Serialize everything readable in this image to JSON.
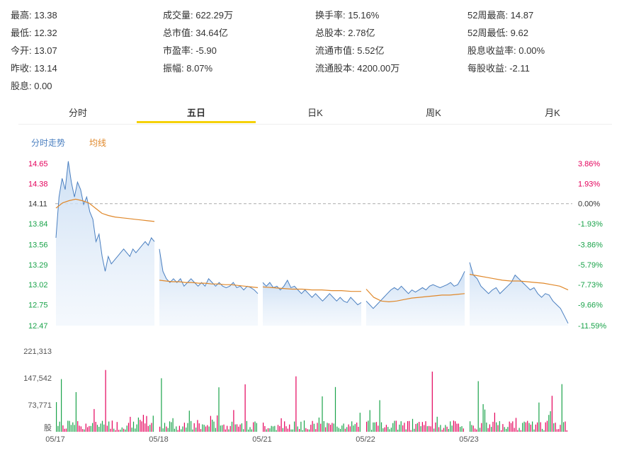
{
  "stats": [
    [
      {
        "label": "最高",
        "value": "13.38"
      },
      {
        "label": "最低",
        "value": "12.32"
      },
      {
        "label": "今开",
        "value": "13.07"
      },
      {
        "label": "昨收",
        "value": "13.14"
      },
      {
        "label": "股息",
        "value": "0.00"
      }
    ],
    [
      {
        "label": "成交量",
        "value": "622.29万"
      },
      {
        "label": "总市值",
        "value": "34.64亿"
      },
      {
        "label": "市盈率",
        "value": "-5.90"
      },
      {
        "label": "振幅",
        "value": "8.07%"
      }
    ],
    [
      {
        "label": "换手率",
        "value": "15.16%"
      },
      {
        "label": "总股本",
        "value": "2.78亿"
      },
      {
        "label": "流通市值",
        "value": "5.52亿"
      },
      {
        "label": "流通股本",
        "value": "4200.00万"
      }
    ],
    [
      {
        "label": "52周最高",
        "value": "14.87"
      },
      {
        "label": "52周最低",
        "value": "9.62"
      },
      {
        "label": "股息收益率",
        "value": "0.00%"
      },
      {
        "label": "每股收益",
        "value": "-2.11"
      }
    ]
  ],
  "tabs": [
    "分时",
    "五日",
    "日K",
    "周K",
    "月K"
  ],
  "active_tab": 1,
  "colors": {
    "price_line": "#4a7fc0",
    "avg_line": "#e0882a",
    "up": "#e4005b",
    "down": "#1aa34a",
    "accent": "#f5d10a",
    "legend_blue": "#4a7fc0",
    "legend_orange": "#e0882a"
  },
  "chart_data": {
    "type": "line",
    "legend": [
      "分时走势",
      "均线"
    ],
    "price_ticks": [
      "14.65",
      "14.38",
      "14.11",
      "13.84",
      "13.56",
      "13.29",
      "13.02",
      "12.75",
      "12.47"
    ],
    "pct_ticks": [
      "3.86%",
      "1.93%",
      "0.00%",
      "-1.93%",
      "-3.86%",
      "-5.79%",
      "-7.73%",
      "-9.66%",
      "-11.59%"
    ],
    "ylim": [
      12.47,
      14.65
    ],
    "prev_close": 14.11,
    "volume_ticks": [
      "221,313",
      "147,542",
      "73,771"
    ],
    "volume_unit": "股",
    "volume_max": 221313,
    "days": [
      "05/17",
      "05/18",
      "05/21",
      "05/22",
      "05/23"
    ],
    "price_series": [
      [
        13.65,
        14.2,
        14.45,
        14.3,
        14.68,
        14.4,
        14.2,
        14.4,
        14.3,
        14.1,
        14.2,
        14.0,
        13.9,
        13.6,
        13.7,
        13.4,
        13.2,
        13.4,
        13.3,
        13.35,
        13.4,
        13.45,
        13.5,
        13.45,
        13.4,
        13.5,
        13.45,
        13.5,
        13.55,
        13.6,
        13.55,
        13.65,
        13.6
      ],
      [
        13.5,
        13.2,
        13.1,
        13.05,
        13.1,
        13.05,
        13.1,
        13.0,
        13.05,
        13.1,
        13.05,
        13.0,
        13.05,
        13.0,
        13.1,
        13.05,
        13.0,
        13.05,
        13.0,
        12.98,
        13.0,
        13.05,
        12.98,
        13.0,
        12.95,
        13.0,
        12.98,
        12.95,
        12.9
      ],
      [
        13.05,
        13.0,
        13.05,
        12.98,
        13.0,
        12.95,
        13.0,
        13.08,
        12.98,
        13.0,
        12.95,
        12.9,
        12.95,
        12.9,
        12.85,
        12.9,
        12.85,
        12.8,
        12.85,
        12.9,
        12.85,
        12.8,
        12.85,
        12.8,
        12.78,
        12.85,
        12.8,
        12.75,
        12.78
      ],
      [
        12.8,
        12.75,
        12.7,
        12.75,
        12.8,
        12.85,
        12.9,
        12.95,
        12.98,
        12.95,
        13.0,
        12.95,
        12.9,
        12.95,
        12.92,
        12.95,
        12.98,
        12.95,
        13.0,
        13.02,
        13.0,
        12.98,
        13.0,
        13.02,
        13.05,
        13.0,
        13.02,
        13.1,
        13.2
      ],
      [
        13.32,
        13.15,
        13.1,
        13.0,
        12.95,
        12.9,
        12.95,
        12.98,
        12.9,
        12.95,
        13.0,
        13.05,
        13.15,
        13.1,
        13.05,
        13.0,
        12.95,
        12.98,
        12.9,
        12.85,
        12.9,
        12.88,
        12.8,
        12.75,
        12.7,
        12.6,
        12.5
      ]
    ],
    "avg_series": [
      [
        14.05,
        14.12,
        14.15,
        14.17,
        14.15,
        14.12,
        14.05,
        13.98,
        13.95,
        13.93,
        13.92,
        13.91,
        13.9,
        13.89,
        13.88,
        13.87
      ],
      [
        13.08,
        13.07,
        13.06,
        13.06,
        13.05,
        13.05,
        13.04,
        13.04,
        13.03,
        13.03,
        13.02,
        13.02,
        13.01,
        13.0,
        12.99,
        12.98
      ],
      [
        12.99,
        12.98,
        12.97,
        12.96,
        12.96,
        12.95,
        12.95,
        12.94,
        12.94,
        12.93,
        12.93
      ],
      [
        12.96,
        12.85,
        12.8,
        12.79,
        12.8,
        12.82,
        12.84,
        12.85,
        12.86,
        12.87,
        12.88,
        12.88,
        12.89,
        12.9
      ],
      [
        13.16,
        13.14,
        13.12,
        13.1,
        13.08,
        13.07,
        13.07,
        13.06,
        13.05,
        13.04,
        13.02,
        13.0,
        12.95
      ]
    ]
  }
}
